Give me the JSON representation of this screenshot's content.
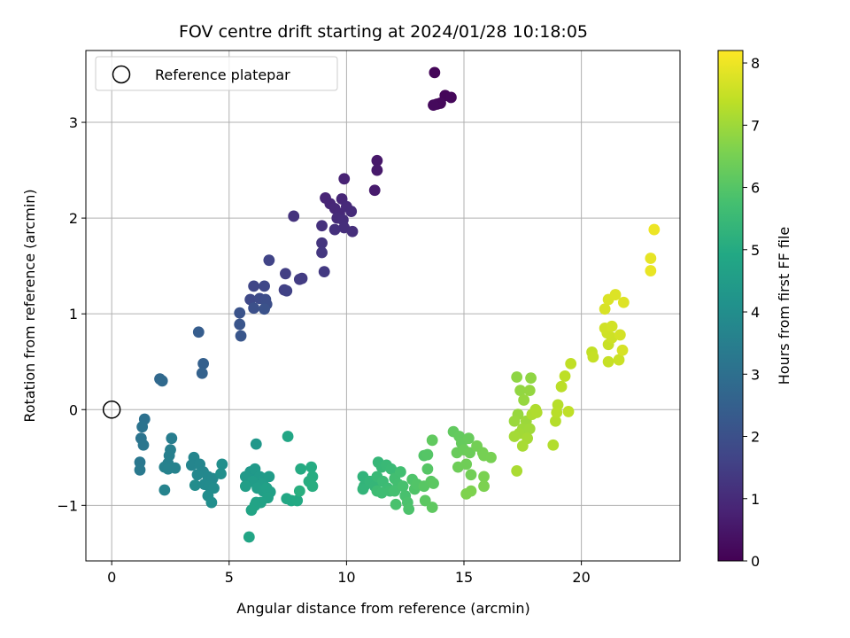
{
  "chart_data": {
    "type": "scatter",
    "title": "FOV centre drift starting at 2024/01/28 10:18:05",
    "xlabel": "Angular distance from reference (arcmin)",
    "ylabel": "Rotation from reference (arcmin)",
    "xlim": [
      -1.1,
      24.2
    ],
    "ylim": [
      -1.58,
      3.75
    ],
    "xticks": [
      0,
      5,
      10,
      15,
      20
    ],
    "yticks": [
      -1,
      0,
      1,
      2,
      3
    ],
    "grid": true,
    "legend": {
      "placement": "upper-left",
      "entries": [
        "Reference platepar"
      ]
    },
    "reference_point": {
      "x": 0,
      "y": 0,
      "label": "Reference platepar"
    },
    "colorbar": {
      "label": "Hours from first FF file",
      "colormap": "viridis",
      "range": [
        0,
        8.2
      ],
      "ticks": [
        0,
        1,
        2,
        3,
        4,
        5,
        6,
        7,
        8
      ]
    },
    "points": [
      [
        13.75,
        3.52,
        0.1
      ],
      [
        14.2,
        3.28,
        0.12
      ],
      [
        14.45,
        3.26,
        0.14
      ],
      [
        13.85,
        3.19,
        0.16
      ],
      [
        14.0,
        3.2,
        0.18
      ],
      [
        13.7,
        3.18,
        0.2
      ],
      [
        11.3,
        2.6,
        0.55
      ],
      [
        11.3,
        2.5,
        0.58
      ],
      [
        11.2,
        2.29,
        0.62
      ],
      [
        9.9,
        2.41,
        0.8
      ],
      [
        9.1,
        2.21,
        0.85
      ],
      [
        9.3,
        2.15,
        0.88
      ],
      [
        9.8,
        2.2,
        0.9
      ],
      [
        9.5,
        2.1,
        0.92
      ],
      [
        9.7,
        2.05,
        0.95
      ],
      [
        10.0,
        2.12,
        0.98
      ],
      [
        10.2,
        2.07,
        1.0
      ],
      [
        9.6,
        2.0,
        1.02
      ],
      [
        9.85,
        1.98,
        1.05
      ],
      [
        9.9,
        1.9,
        1.08
      ],
      [
        10.25,
        1.86,
        1.1
      ],
      [
        9.5,
        1.88,
        1.12
      ],
      [
        8.95,
        1.92,
        1.15
      ],
      [
        7.75,
        2.02,
        1.2
      ],
      [
        8.95,
        1.74,
        1.25
      ],
      [
        8.95,
        1.64,
        1.3
      ],
      [
        9.05,
        1.44,
        1.35
      ],
      [
        8.1,
        1.37,
        1.4
      ],
      [
        8.0,
        1.36,
        1.45
      ],
      [
        7.4,
        1.42,
        1.5
      ],
      [
        7.35,
        1.25,
        1.55
      ],
      [
        7.45,
        1.24,
        1.6
      ],
      [
        6.7,
        1.56,
        1.65
      ],
      [
        6.05,
        1.29,
        1.7
      ],
      [
        6.5,
        1.29,
        1.75
      ],
      [
        5.9,
        1.15,
        1.8
      ],
      [
        6.3,
        1.16,
        1.85
      ],
      [
        6.55,
        1.15,
        1.9
      ],
      [
        6.6,
        1.1,
        1.95
      ],
      [
        6.05,
        1.06,
        2.0
      ],
      [
        6.5,
        1.05,
        2.05
      ],
      [
        5.45,
        1.01,
        2.1
      ],
      [
        5.45,
        0.89,
        2.15
      ],
      [
        5.5,
        0.77,
        2.2
      ],
      [
        3.7,
        0.81,
        2.4
      ],
      [
        3.9,
        0.48,
        2.5
      ],
      [
        3.85,
        0.38,
        2.55
      ],
      [
        2.05,
        0.32,
        2.75
      ],
      [
        2.15,
        0.3,
        2.8
      ],
      [
        1.4,
        -0.1,
        3.05
      ],
      [
        1.3,
        -0.18,
        3.1
      ],
      [
        1.25,
        -0.3,
        3.15
      ],
      [
        1.35,
        -0.37,
        3.2
      ],
      [
        1.2,
        -0.55,
        3.25
      ],
      [
        1.2,
        -0.63,
        3.3
      ],
      [
        2.55,
        -0.3,
        3.45
      ],
      [
        2.5,
        -0.42,
        3.5
      ],
      [
        2.45,
        -0.48,
        3.52
      ],
      [
        2.4,
        -0.56,
        3.55
      ],
      [
        2.25,
        -0.6,
        3.58
      ],
      [
        2.4,
        -0.62,
        3.6
      ],
      [
        2.7,
        -0.61,
        3.62
      ],
      [
        2.25,
        -0.84,
        3.65
      ],
      [
        3.5,
        -0.5,
        3.7
      ],
      [
        3.4,
        -0.58,
        3.72
      ],
      [
        3.75,
        -0.57,
        3.75
      ],
      [
        3.9,
        -0.65,
        3.78
      ],
      [
        3.65,
        -0.68,
        3.8
      ],
      [
        4.1,
        -0.7,
        3.82
      ],
      [
        4.3,
        -0.72,
        3.85
      ],
      [
        3.95,
        -0.78,
        3.88
      ],
      [
        4.15,
        -0.8,
        3.9
      ],
      [
        4.35,
        -0.82,
        3.92
      ],
      [
        3.55,
        -0.79,
        3.95
      ],
      [
        4.1,
        -0.9,
        3.97
      ],
      [
        4.25,
        -0.97,
        4.0
      ],
      [
        4.7,
        -0.57,
        4.02
      ],
      [
        4.65,
        -0.67,
        4.05
      ],
      [
        6.15,
        -0.36,
        4.3
      ],
      [
        5.9,
        -0.65,
        4.35
      ],
      [
        6.1,
        -0.62,
        4.38
      ],
      [
        5.7,
        -0.7,
        4.4
      ],
      [
        6.3,
        -0.7,
        4.42
      ],
      [
        6.5,
        -0.72,
        4.45
      ],
      [
        6.7,
        -0.7,
        4.48
      ],
      [
        6.0,
        -0.75,
        4.5
      ],
      [
        6.4,
        -0.78,
        4.52
      ],
      [
        6.2,
        -0.82,
        4.55
      ],
      [
        5.7,
        -0.8,
        4.58
      ],
      [
        6.45,
        -0.85,
        4.6
      ],
      [
        6.6,
        -0.82,
        4.62
      ],
      [
        6.75,
        -0.86,
        4.65
      ],
      [
        6.65,
        -0.92,
        4.68
      ],
      [
        6.15,
        -0.97,
        4.7
      ],
      [
        6.35,
        -0.97,
        4.72
      ],
      [
        6.1,
        -1.0,
        4.75
      ],
      [
        5.95,
        -1.05,
        4.78
      ],
      [
        5.85,
        -1.33,
        4.8
      ],
      [
        7.5,
        -0.28,
        4.85
      ],
      [
        7.45,
        -0.93,
        4.9
      ],
      [
        7.65,
        -0.95,
        4.92
      ],
      [
        7.9,
        -0.95,
        4.95
      ],
      [
        8.05,
        -0.62,
        5.0
      ],
      [
        8.5,
        -0.6,
        5.02
      ],
      [
        8.55,
        -0.7,
        5.05
      ],
      [
        8.4,
        -0.75,
        5.08
      ],
      [
        8.55,
        -0.8,
        5.1
      ],
      [
        8.0,
        -0.85,
        5.12
      ],
      [
        10.7,
        -0.7,
        5.3
      ],
      [
        10.75,
        -0.8,
        5.32
      ],
      [
        10.7,
        -0.83,
        5.35
      ],
      [
        11.0,
        -0.75,
        5.38
      ],
      [
        11.2,
        -0.8,
        5.4
      ],
      [
        11.35,
        -0.55,
        5.42
      ],
      [
        11.5,
        -0.6,
        5.45
      ],
      [
        11.3,
        -0.7,
        5.48
      ],
      [
        11.7,
        -0.58,
        5.5
      ],
      [
        11.9,
        -0.62,
        5.52
      ],
      [
        11.55,
        -0.75,
        5.55
      ],
      [
        11.75,
        -0.82,
        5.58
      ],
      [
        11.3,
        -0.85,
        5.6
      ],
      [
        11.5,
        -0.87,
        5.62
      ],
      [
        11.85,
        -0.85,
        5.65
      ],
      [
        12.05,
        -0.72,
        5.68
      ],
      [
        12.3,
        -0.65,
        5.7
      ],
      [
        12.2,
        -0.78,
        5.72
      ],
      [
        12.05,
        -0.85,
        5.75
      ],
      [
        12.4,
        -0.8,
        5.78
      ],
      [
        12.5,
        -0.9,
        5.8
      ],
      [
        12.1,
        -0.99,
        5.82
      ],
      [
        12.6,
        -0.97,
        5.85
      ],
      [
        12.65,
        -1.04,
        5.88
      ],
      [
        12.8,
        -0.73,
        5.9
      ],
      [
        12.9,
        -0.83,
        5.92
      ],
      [
        13.0,
        -0.78,
        5.95
      ],
      [
        13.3,
        -0.48,
        5.97
      ],
      [
        13.45,
        -0.47,
        6.0
      ],
      [
        13.45,
        -0.62,
        6.02
      ],
      [
        13.3,
        -0.8,
        6.05
      ],
      [
        13.6,
        -0.75,
        6.08
      ],
      [
        13.7,
        -0.77,
        6.1
      ],
      [
        13.35,
        -0.95,
        6.12
      ],
      [
        13.65,
        -1.02,
        6.15
      ],
      [
        13.65,
        -0.32,
        6.18
      ],
      [
        14.55,
        -0.23,
        6.2
      ],
      [
        14.8,
        -0.28,
        6.22
      ],
      [
        14.9,
        -0.35,
        6.25
      ],
      [
        15.2,
        -0.3,
        6.28
      ],
      [
        14.7,
        -0.45,
        6.3
      ],
      [
        15.0,
        -0.42,
        6.32
      ],
      [
        15.25,
        -0.45,
        6.35
      ],
      [
        14.75,
        -0.6,
        6.38
      ],
      [
        15.1,
        -0.57,
        6.4
      ],
      [
        15.3,
        -0.68,
        6.42
      ],
      [
        15.55,
        -0.38,
        6.45
      ],
      [
        15.8,
        -0.45,
        6.48
      ],
      [
        15.85,
        -0.48,
        6.5
      ],
      [
        16.15,
        -0.5,
        6.52
      ],
      [
        15.85,
        -0.7,
        6.55
      ],
      [
        15.85,
        -0.8,
        6.58
      ],
      [
        15.3,
        -0.85,
        6.6
      ],
      [
        15.1,
        -0.88,
        6.62
      ],
      [
        17.25,
        0.34,
        6.8
      ],
      [
        17.85,
        0.33,
        6.82
      ],
      [
        17.4,
        0.2,
        6.85
      ],
      [
        17.8,
        0.2,
        6.88
      ],
      [
        17.55,
        0.1,
        6.9
      ],
      [
        17.3,
        -0.05,
        6.92
      ],
      [
        17.15,
        -0.12,
        6.95
      ],
      [
        17.65,
        -0.12,
        6.98
      ],
      [
        17.5,
        -0.2,
        7.0
      ],
      [
        17.8,
        -0.2,
        7.02
      ],
      [
        17.35,
        -0.25,
        7.05
      ],
      [
        17.15,
        -0.28,
        7.08
      ],
      [
        17.7,
        -0.3,
        7.1
      ],
      [
        17.5,
        -0.38,
        7.12
      ],
      [
        17.25,
        -0.64,
        7.15
      ],
      [
        17.9,
        -0.05,
        7.18
      ],
      [
        18.05,
        0.0,
        7.2
      ],
      [
        18.1,
        -0.03,
        7.22
      ],
      [
        18.8,
        -0.37,
        7.25
      ],
      [
        18.9,
        -0.12,
        7.28
      ],
      [
        19.0,
        0.05,
        7.3
      ],
      [
        18.95,
        -0.03,
        7.32
      ],
      [
        19.15,
        0.24,
        7.35
      ],
      [
        19.3,
        0.35,
        7.38
      ],
      [
        19.45,
        -0.02,
        7.4
      ],
      [
        19.55,
        0.48,
        7.42
      ],
      [
        20.45,
        0.6,
        7.45
      ],
      [
        20.5,
        0.55,
        7.48
      ],
      [
        21.15,
        0.5,
        7.5
      ],
      [
        21.15,
        0.68,
        7.52
      ],
      [
        21.6,
        0.52,
        7.55
      ],
      [
        21.3,
        0.75,
        7.58
      ],
      [
        21.1,
        0.8,
        7.6
      ],
      [
        21.0,
        0.85,
        7.62
      ],
      [
        21.3,
        0.87,
        7.65
      ],
      [
        21.65,
        0.78,
        7.68
      ],
      [
        21.75,
        0.62,
        7.7
      ],
      [
        21.0,
        1.05,
        7.72
      ],
      [
        21.15,
        1.15,
        7.75
      ],
      [
        21.45,
        1.2,
        7.78
      ],
      [
        21.8,
        1.12,
        7.8
      ],
      [
        22.95,
        1.58,
        7.9
      ],
      [
        22.95,
        1.45,
        7.95
      ],
      [
        23.1,
        1.88,
        8.0
      ]
    ]
  }
}
